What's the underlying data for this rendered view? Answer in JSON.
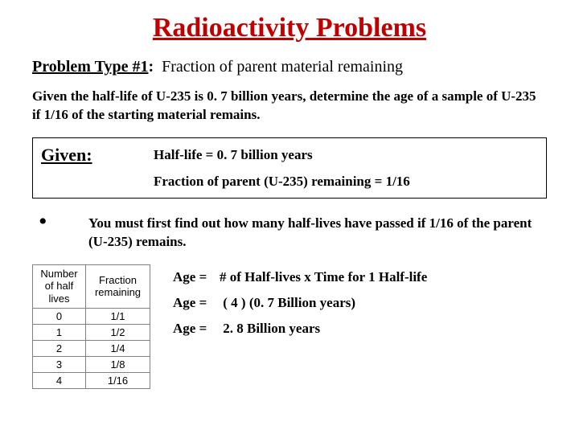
{
  "title": "Radioactivity Problems",
  "problem_type": {
    "label": "Problem Type #1",
    "sep": ":",
    "desc": "Fraction of parent material remaining"
  },
  "problem_text": "Given the half-life of U-235 is 0. 7 billion years, determine the age of a sample of U-235 if 1/16 of the starting material remains.",
  "given": {
    "label": "Given:",
    "line1": "Half-life = 0. 7 billion years",
    "line2": "Fraction of parent (U-235) remaining = 1/16"
  },
  "bullet": "You must first find out how many half-lives have passed if 1/16 of the parent (U-235) remains.",
  "table": {
    "header_num": "Number of half lives",
    "header_frac": "Fraction remaining",
    "rows": [
      {
        "n": "0",
        "f": "1/1"
      },
      {
        "n": "1",
        "f": "1/2"
      },
      {
        "n": "2",
        "f": "1/4"
      },
      {
        "n": "3",
        "f": "1/8"
      },
      {
        "n": "4",
        "f": "1/16"
      }
    ]
  },
  "equations": {
    "eq1_lhs": "Age =",
    "eq1_rhs": "# of Half-lives  x  Time for 1 Half-life",
    "eq2_lhs": "Age =",
    "eq2_rhs": " ( 4 ) (0. 7 Billion years)",
    "eq3_lhs": "Age =",
    "eq3_rhs": " 2. 8 Billion years"
  },
  "colors": {
    "title_color": "#c00000",
    "text_color": "#000000",
    "background": "#ffffff",
    "table_border": "#808080"
  }
}
